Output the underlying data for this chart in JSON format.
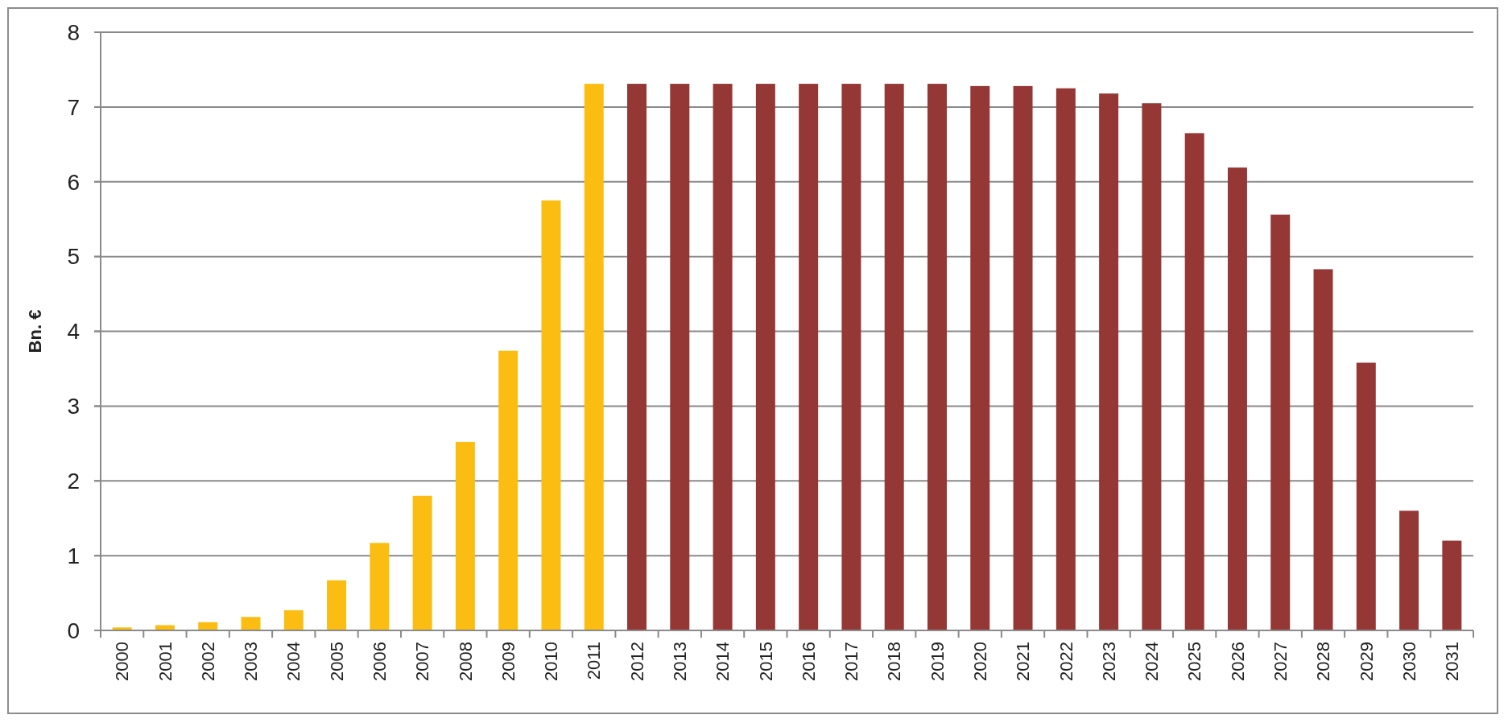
{
  "chart_data": {
    "type": "bar",
    "ylabel": "Bn. €",
    "categories": [
      "2000",
      "2001",
      "2002",
      "2003",
      "2004",
      "2005",
      "2006",
      "2007",
      "2008",
      "2009",
      "2010",
      "2011",
      "2012",
      "2013",
      "2014",
      "2015",
      "2016",
      "2017",
      "2018",
      "2019",
      "2020",
      "2021",
      "2022",
      "2023",
      "2024",
      "2025",
      "2026",
      "2027",
      "2028",
      "2029",
      "2030",
      "2031"
    ],
    "values": [
      0.04,
      0.07,
      0.11,
      0.18,
      0.27,
      0.67,
      1.17,
      1.8,
      2.52,
      3.74,
      5.75,
      7.31,
      7.31,
      7.31,
      7.31,
      7.31,
      7.31,
      7.31,
      7.31,
      7.31,
      7.28,
      7.28,
      7.25,
      7.18,
      7.05,
      6.65,
      6.19,
      5.56,
      4.83,
      3.58,
      1.6,
      1.2
    ],
    "colors": [
      "#fbbd12",
      "#fbbd12",
      "#fbbd12",
      "#fbbd12",
      "#fbbd12",
      "#fbbd12",
      "#fbbd12",
      "#fbbd12",
      "#fbbd12",
      "#fbbd12",
      "#fbbd12",
      "#fbbd12",
      "#953735",
      "#953735",
      "#953735",
      "#953735",
      "#953735",
      "#953735",
      "#953735",
      "#953735",
      "#953735",
      "#953735",
      "#953735",
      "#953735",
      "#953735",
      "#953735",
      "#953735",
      "#953735",
      "#953735",
      "#953735",
      "#953735",
      "#953735"
    ],
    "ylim": [
      0,
      8
    ],
    "yticks": [
      0,
      1,
      2,
      3,
      4,
      5,
      6,
      7,
      8
    ],
    "grid": "y"
  }
}
